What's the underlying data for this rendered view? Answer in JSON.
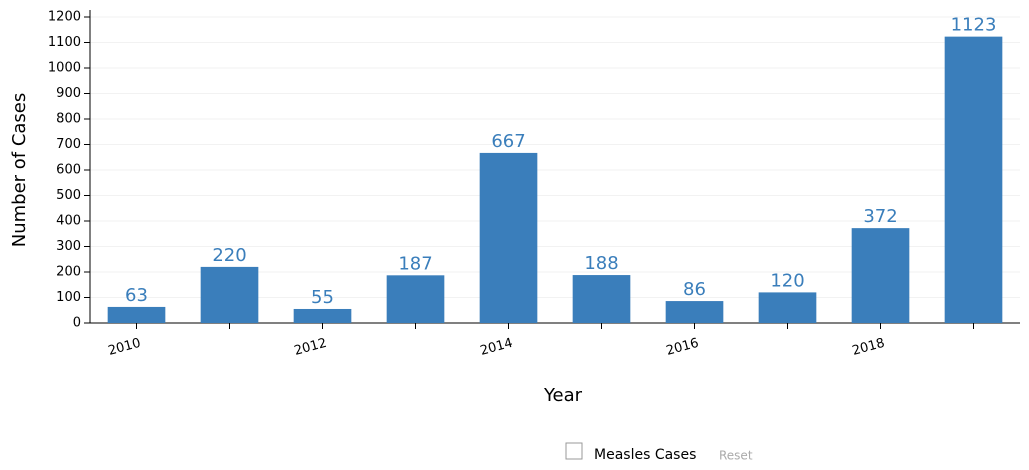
{
  "chart_data": {
    "type": "bar",
    "x_label": "Year",
    "y_label": "Number of Cases",
    "categories": [
      "2010",
      null,
      "2012",
      null,
      "2014",
      null,
      "2016",
      null,
      "2018",
      null
    ],
    "series": [
      {
        "name": "Measles Cases",
        "color": "#3a7ebb",
        "values": [
          63,
          220,
          55,
          187,
          667,
          188,
          86,
          120,
          372,
          1123
        ]
      }
    ],
    "ylim": [
      0,
      1200
    ],
    "yticks": [
      0,
      100,
      200,
      300,
      400,
      500,
      600,
      700,
      800,
      900,
      1000,
      1100,
      1200
    ],
    "grid": true,
    "legend": "bottom",
    "reset": "Reset"
  }
}
